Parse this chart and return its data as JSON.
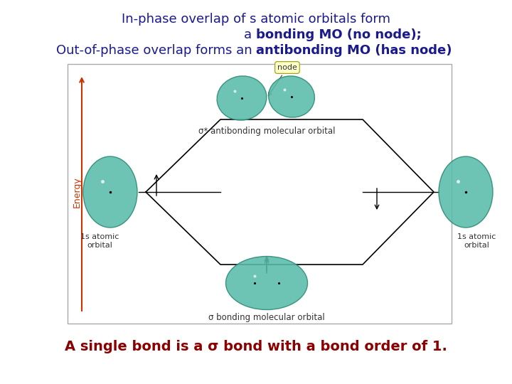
{
  "title_color": "#1a1a8c",
  "bottom_text_color": "#8b0000",
  "bg_color": "#ffffff",
  "teal_color": "#5abcaa",
  "teal_edge": "#2a8a70",
  "energy_label": "Energy",
  "node_label": "node",
  "antibonding_label": "σ* antibonding molecular orbital",
  "bonding_label": "σ bonding molecular orbital",
  "left_orbital_label": "1s atomic\norbital",
  "right_orbital_label": "1s atomic\norbital",
  "bottom_text": "A single bond is a σ bond with a bond order of 1."
}
